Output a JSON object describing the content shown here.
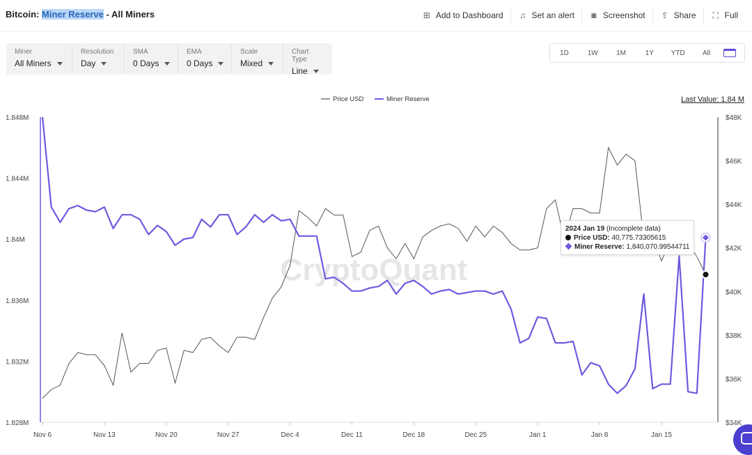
{
  "header": {
    "title_prefix": "Bitcoin: ",
    "title_highlight": "Miner Reserve",
    "title_suffix": " - All Miners",
    "actions": [
      {
        "label": "Add to Dashboard",
        "icon": "folder-plus-icon"
      },
      {
        "label": "Set an alert",
        "icon": "bell-icon"
      },
      {
        "label": "Screenshot",
        "icon": "camera-icon"
      },
      {
        "label": "Share",
        "icon": "share-icon"
      },
      {
        "label": "Full",
        "icon": "fullscreen-icon"
      }
    ]
  },
  "controls": [
    {
      "label": "Miner",
      "value": "All Miners"
    },
    {
      "label": "Resolution",
      "value": "Day"
    },
    {
      "label": "SMA",
      "value": "0 Days"
    },
    {
      "label": "EMA",
      "value": "0 Days"
    },
    {
      "label": "Scale",
      "value": "Mixed"
    },
    {
      "label": "Chart Type",
      "value": "Line"
    }
  ],
  "ranges": [
    "1D",
    "1W",
    "1M",
    "1Y",
    "YTD",
    "All"
  ],
  "last_value": "Last Value: 1.84 M",
  "watermark": "CryptoQuant",
  "tooltip": {
    "date": "2024 Jan 19",
    "note": " (Incomplete data)",
    "price_label": "Price USD:",
    "price_value": " 40,775.73305615",
    "reserve_label": "Miner Reserve:",
    "reserve_value": " 1,840,070.99544711"
  },
  "colors": {
    "reserve": "#6b5be0",
    "price": "#555555"
  },
  "chart_data": {
    "type": "line",
    "legend": [
      "Price USD",
      "Miner Reserve"
    ],
    "legend_position": "top-center",
    "x_tick_labels": [
      "Nov 6",
      "Nov 13",
      "Nov 20",
      "Nov 27",
      "Dec 4",
      "Dec 11",
      "Dec 18",
      "Dec 25",
      "Jan 1",
      "Jan 8",
      "Jan 15"
    ],
    "x_start": "Nov 6",
    "y_left_ticks": [
      "1.848M",
      "1.844M",
      "1.84M",
      "1.836M",
      "1.832M",
      "1.828M"
    ],
    "y_left_range": [
      1.828,
      1.848
    ],
    "y_right_ticks": [
      "$48K",
      "$46K",
      "$44K",
      "$42K",
      "$40K",
      "$38K",
      "$36K",
      "$34K"
    ],
    "y_right_range": [
      34000,
      48000
    ],
    "series": [
      {
        "name": "Miner Reserve",
        "axis": "left",
        "unit": "M",
        "values": [
          1.848,
          1.8421,
          1.8411,
          1.842,
          1.8422,
          1.8419,
          1.8418,
          1.8421,
          1.8407,
          1.8416,
          1.8416,
          1.8413,
          1.8403,
          1.8409,
          1.8405,
          1.8396,
          1.84,
          1.8401,
          1.8413,
          1.8408,
          1.8416,
          1.8416,
          1.8403,
          1.8408,
          1.8416,
          1.8411,
          1.8416,
          1.8412,
          1.8413,
          1.8402,
          1.8402,
          1.8402,
          1.8374,
          1.8375,
          1.8371,
          1.8366,
          1.8366,
          1.8368,
          1.8369,
          1.8373,
          1.8364,
          1.8371,
          1.8373,
          1.8369,
          1.8364,
          1.8366,
          1.8367,
          1.8364,
          1.8365,
          1.8366,
          1.8366,
          1.8364,
          1.8366,
          1.8354,
          1.8332,
          1.8335,
          1.8349,
          1.8348,
          1.8332,
          1.8332,
          1.8333,
          1.8311,
          1.8319,
          1.8317,
          1.8305,
          1.8299,
          1.8304,
          1.8315,
          1.8364,
          1.8302,
          1.8305,
          1.8305,
          1.8389,
          1.83,
          1.8299,
          1.8401
        ]
      },
      {
        "name": "Price USD",
        "axis": "right",
        "unit": "USD",
        "values": [
          35100,
          35500,
          35700,
          36700,
          37200,
          37100,
          37100,
          36600,
          35700,
          38100,
          36300,
          36700,
          36700,
          37300,
          37400,
          35800,
          37300,
          37200,
          37800,
          37900,
          37500,
          37200,
          37900,
          37900,
          37800,
          38800,
          39700,
          40200,
          41200,
          43700,
          43400,
          43000,
          43800,
          43500,
          43500,
          41600,
          41800,
          42800,
          43000,
          42000,
          41500,
          42200,
          41500,
          42500,
          42800,
          43000,
          43100,
          42900,
          42300,
          43000,
          42500,
          43000,
          42700,
          42200,
          41900,
          41900,
          42000,
          43800,
          44200,
          42400,
          43800,
          43800,
          43600,
          43600,
          46600,
          45800,
          46300,
          46000,
          42400,
          42500,
          41400,
          42300,
          42600,
          42200,
          41600,
          40775.73
        ]
      }
    ],
    "highlight_point": {
      "date": "2024 Jan 19",
      "price": 40775.73305615,
      "reserve": 1840070.99544711
    }
  }
}
